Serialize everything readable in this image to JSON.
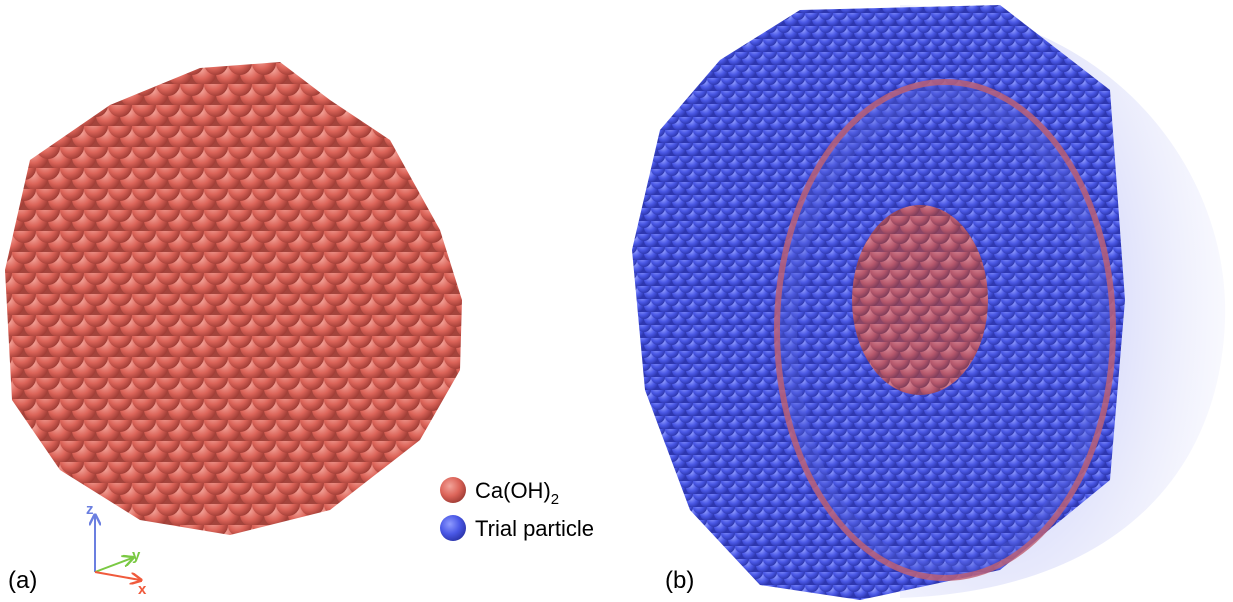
{
  "panels": [
    {
      "label": "(a)"
    },
    {
      "label": "(b)"
    }
  ],
  "axes": {
    "z": "z",
    "y": "y",
    "x": "x"
  },
  "legend": [
    {
      "name": "Ca(OH)",
      "subscript": "2"
    },
    {
      "name": "Trial particle"
    }
  ]
}
